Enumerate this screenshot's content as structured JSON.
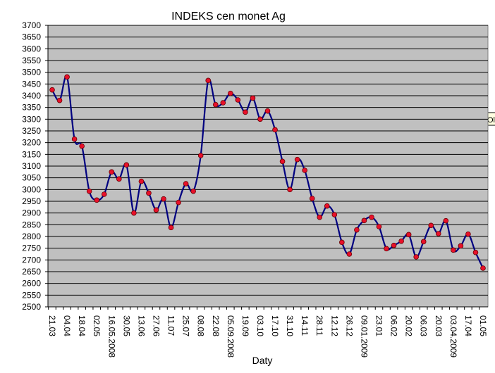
{
  "chart_data": {
    "type": "line",
    "title": "INDEKS cen monet Ag",
    "x_label": "Daty",
    "annotation": "Ol",
    "categories": [
      "21.03",
      null,
      "04.04",
      null,
      "18.04",
      null,
      "02.05",
      null,
      "16.05.2008",
      null,
      "30.05",
      null,
      "13.06",
      null,
      "27.06",
      null,
      "11.07",
      null,
      "25.07",
      null,
      "08.08",
      null,
      "22.08",
      null,
      "05.09.2008",
      null,
      "19.09",
      null,
      "03.10",
      null,
      "17.10",
      null,
      "31.10",
      null,
      "14.11",
      null,
      "28.11",
      null,
      "12.12",
      null,
      "26.12",
      null,
      "09.01.2009",
      null,
      "23.01",
      null,
      "06.02",
      null,
      "20.02",
      null,
      "06.03",
      null,
      "20.03",
      null,
      "03.04.2009",
      null,
      "17.04",
      null,
      "01.05"
    ],
    "values": [
      3425,
      3380,
      3480,
      3215,
      3185,
      2993,
      2955,
      2980,
      3075,
      3045,
      3105,
      2900,
      3035,
      2985,
      2913,
      2960,
      2838,
      2945,
      3025,
      2993,
      3145,
      3465,
      3362,
      3370,
      3410,
      3382,
      3330,
      3390,
      3300,
      3335,
      3255,
      3120,
      3000,
      3128,
      3082,
      2962,
      2882,
      2930,
      2893,
      2775,
      2725,
      2828,
      2868,
      2882,
      2842,
      2748,
      2762,
      2780,
      2808,
      2713,
      2778,
      2847,
      2812,
      2867,
      2742,
      2760,
      2810,
      2732,
      2665
    ],
    "color": "#000080",
    "marker_color": "#e8102a",
    "ylim": [
      2500,
      3700
    ],
    "yticks": [
      2500,
      2550,
      2600,
      2650,
      2700,
      2750,
      2800,
      2850,
      2900,
      2950,
      3000,
      3050,
      3100,
      3150,
      3200,
      3250,
      3300,
      3350,
      3400,
      3450,
      3500,
      3550,
      3600,
      3650,
      3700
    ],
    "grid": true,
    "smooth": true
  }
}
